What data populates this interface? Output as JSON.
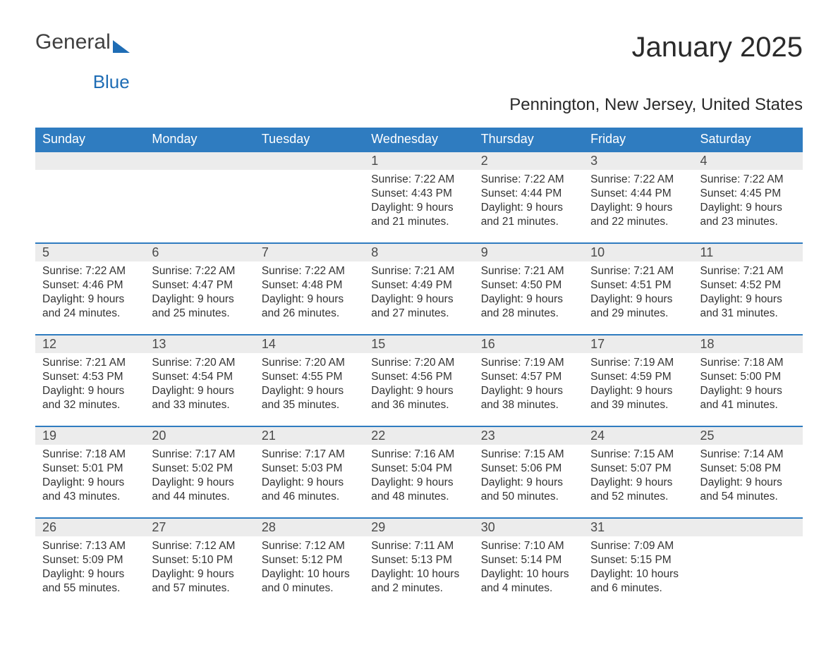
{
  "logo": {
    "general": "General",
    "blue": "Blue"
  },
  "title": "January 2025",
  "subtitle": "Pennington, New Jersey, United States",
  "colors": {
    "header_bg": "#2f7cc0",
    "header_text": "#ffffff",
    "daynum_bg": "#ececec",
    "daynum_border": "#2f7cc0",
    "body_bg": "#ffffff",
    "text": "#333333",
    "logo_gray": "#404040",
    "logo_blue": "#1f6db5"
  },
  "typography": {
    "title_fontsize": 40,
    "subtitle_fontsize": 24,
    "header_fontsize": 18,
    "daynum_fontsize": 18,
    "body_fontsize": 15.5
  },
  "weekdays": [
    "Sunday",
    "Monday",
    "Tuesday",
    "Wednesday",
    "Thursday",
    "Friday",
    "Saturday"
  ],
  "weeks": [
    [
      {
        "empty": true
      },
      {
        "empty": true
      },
      {
        "empty": true
      },
      {
        "day": "1",
        "sunrise": "Sunrise: 7:22 AM",
        "sunset": "Sunset: 4:43 PM",
        "daylight1": "Daylight: 9 hours",
        "daylight2": "and 21 minutes."
      },
      {
        "day": "2",
        "sunrise": "Sunrise: 7:22 AM",
        "sunset": "Sunset: 4:44 PM",
        "daylight1": "Daylight: 9 hours",
        "daylight2": "and 21 minutes."
      },
      {
        "day": "3",
        "sunrise": "Sunrise: 7:22 AM",
        "sunset": "Sunset: 4:44 PM",
        "daylight1": "Daylight: 9 hours",
        "daylight2": "and 22 minutes."
      },
      {
        "day": "4",
        "sunrise": "Sunrise: 7:22 AM",
        "sunset": "Sunset: 4:45 PM",
        "daylight1": "Daylight: 9 hours",
        "daylight2": "and 23 minutes."
      }
    ],
    [
      {
        "day": "5",
        "sunrise": "Sunrise: 7:22 AM",
        "sunset": "Sunset: 4:46 PM",
        "daylight1": "Daylight: 9 hours",
        "daylight2": "and 24 minutes."
      },
      {
        "day": "6",
        "sunrise": "Sunrise: 7:22 AM",
        "sunset": "Sunset: 4:47 PM",
        "daylight1": "Daylight: 9 hours",
        "daylight2": "and 25 minutes."
      },
      {
        "day": "7",
        "sunrise": "Sunrise: 7:22 AM",
        "sunset": "Sunset: 4:48 PM",
        "daylight1": "Daylight: 9 hours",
        "daylight2": "and 26 minutes."
      },
      {
        "day": "8",
        "sunrise": "Sunrise: 7:21 AM",
        "sunset": "Sunset: 4:49 PM",
        "daylight1": "Daylight: 9 hours",
        "daylight2": "and 27 minutes."
      },
      {
        "day": "9",
        "sunrise": "Sunrise: 7:21 AM",
        "sunset": "Sunset: 4:50 PM",
        "daylight1": "Daylight: 9 hours",
        "daylight2": "and 28 minutes."
      },
      {
        "day": "10",
        "sunrise": "Sunrise: 7:21 AM",
        "sunset": "Sunset: 4:51 PM",
        "daylight1": "Daylight: 9 hours",
        "daylight2": "and 29 minutes."
      },
      {
        "day": "11",
        "sunrise": "Sunrise: 7:21 AM",
        "sunset": "Sunset: 4:52 PM",
        "daylight1": "Daylight: 9 hours",
        "daylight2": "and 31 minutes."
      }
    ],
    [
      {
        "day": "12",
        "sunrise": "Sunrise: 7:21 AM",
        "sunset": "Sunset: 4:53 PM",
        "daylight1": "Daylight: 9 hours",
        "daylight2": "and 32 minutes."
      },
      {
        "day": "13",
        "sunrise": "Sunrise: 7:20 AM",
        "sunset": "Sunset: 4:54 PM",
        "daylight1": "Daylight: 9 hours",
        "daylight2": "and 33 minutes."
      },
      {
        "day": "14",
        "sunrise": "Sunrise: 7:20 AM",
        "sunset": "Sunset: 4:55 PM",
        "daylight1": "Daylight: 9 hours",
        "daylight2": "and 35 minutes."
      },
      {
        "day": "15",
        "sunrise": "Sunrise: 7:20 AM",
        "sunset": "Sunset: 4:56 PM",
        "daylight1": "Daylight: 9 hours",
        "daylight2": "and 36 minutes."
      },
      {
        "day": "16",
        "sunrise": "Sunrise: 7:19 AM",
        "sunset": "Sunset: 4:57 PM",
        "daylight1": "Daylight: 9 hours",
        "daylight2": "and 38 minutes."
      },
      {
        "day": "17",
        "sunrise": "Sunrise: 7:19 AM",
        "sunset": "Sunset: 4:59 PM",
        "daylight1": "Daylight: 9 hours",
        "daylight2": "and 39 minutes."
      },
      {
        "day": "18",
        "sunrise": "Sunrise: 7:18 AM",
        "sunset": "Sunset: 5:00 PM",
        "daylight1": "Daylight: 9 hours",
        "daylight2": "and 41 minutes."
      }
    ],
    [
      {
        "day": "19",
        "sunrise": "Sunrise: 7:18 AM",
        "sunset": "Sunset: 5:01 PM",
        "daylight1": "Daylight: 9 hours",
        "daylight2": "and 43 minutes."
      },
      {
        "day": "20",
        "sunrise": "Sunrise: 7:17 AM",
        "sunset": "Sunset: 5:02 PM",
        "daylight1": "Daylight: 9 hours",
        "daylight2": "and 44 minutes."
      },
      {
        "day": "21",
        "sunrise": "Sunrise: 7:17 AM",
        "sunset": "Sunset: 5:03 PM",
        "daylight1": "Daylight: 9 hours",
        "daylight2": "and 46 minutes."
      },
      {
        "day": "22",
        "sunrise": "Sunrise: 7:16 AM",
        "sunset": "Sunset: 5:04 PM",
        "daylight1": "Daylight: 9 hours",
        "daylight2": "and 48 minutes."
      },
      {
        "day": "23",
        "sunrise": "Sunrise: 7:15 AM",
        "sunset": "Sunset: 5:06 PM",
        "daylight1": "Daylight: 9 hours",
        "daylight2": "and 50 minutes."
      },
      {
        "day": "24",
        "sunrise": "Sunrise: 7:15 AM",
        "sunset": "Sunset: 5:07 PM",
        "daylight1": "Daylight: 9 hours",
        "daylight2": "and 52 minutes."
      },
      {
        "day": "25",
        "sunrise": "Sunrise: 7:14 AM",
        "sunset": "Sunset: 5:08 PM",
        "daylight1": "Daylight: 9 hours",
        "daylight2": "and 54 minutes."
      }
    ],
    [
      {
        "day": "26",
        "sunrise": "Sunrise: 7:13 AM",
        "sunset": "Sunset: 5:09 PM",
        "daylight1": "Daylight: 9 hours",
        "daylight2": "and 55 minutes."
      },
      {
        "day": "27",
        "sunrise": "Sunrise: 7:12 AM",
        "sunset": "Sunset: 5:10 PM",
        "daylight1": "Daylight: 9 hours",
        "daylight2": "and 57 minutes."
      },
      {
        "day": "28",
        "sunrise": "Sunrise: 7:12 AM",
        "sunset": "Sunset: 5:12 PM",
        "daylight1": "Daylight: 10 hours",
        "daylight2": "and 0 minutes."
      },
      {
        "day": "29",
        "sunrise": "Sunrise: 7:11 AM",
        "sunset": "Sunset: 5:13 PM",
        "daylight1": "Daylight: 10 hours",
        "daylight2": "and 2 minutes."
      },
      {
        "day": "30",
        "sunrise": "Sunrise: 7:10 AM",
        "sunset": "Sunset: 5:14 PM",
        "daylight1": "Daylight: 10 hours",
        "daylight2": "and 4 minutes."
      },
      {
        "day": "31",
        "sunrise": "Sunrise: 7:09 AM",
        "sunset": "Sunset: 5:15 PM",
        "daylight1": "Daylight: 10 hours",
        "daylight2": "and 6 minutes."
      },
      {
        "empty": true
      }
    ]
  ]
}
